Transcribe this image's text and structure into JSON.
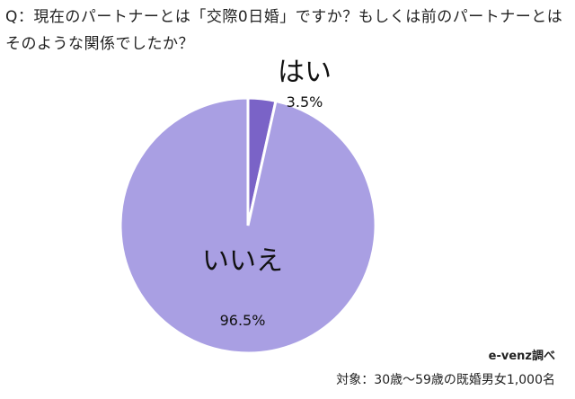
{
  "question": "Q：現在のパートナーとは「交際0日婚」ですか？もしくは前のパートナーとはそのような関係でしたか？",
  "chart_data": {
    "type": "pie",
    "slices": [
      {
        "label": "はい",
        "value": 3.5,
        "value_label": "3.5%",
        "color": "#7a63c7"
      },
      {
        "label": "いいえ",
        "value": 96.5,
        "value_label": "96.5%",
        "color": "#a99fe3"
      }
    ]
  },
  "footer": {
    "source": "e-venz調べ",
    "target": "対象：30歳〜59歳の既婚男女1,000名"
  }
}
